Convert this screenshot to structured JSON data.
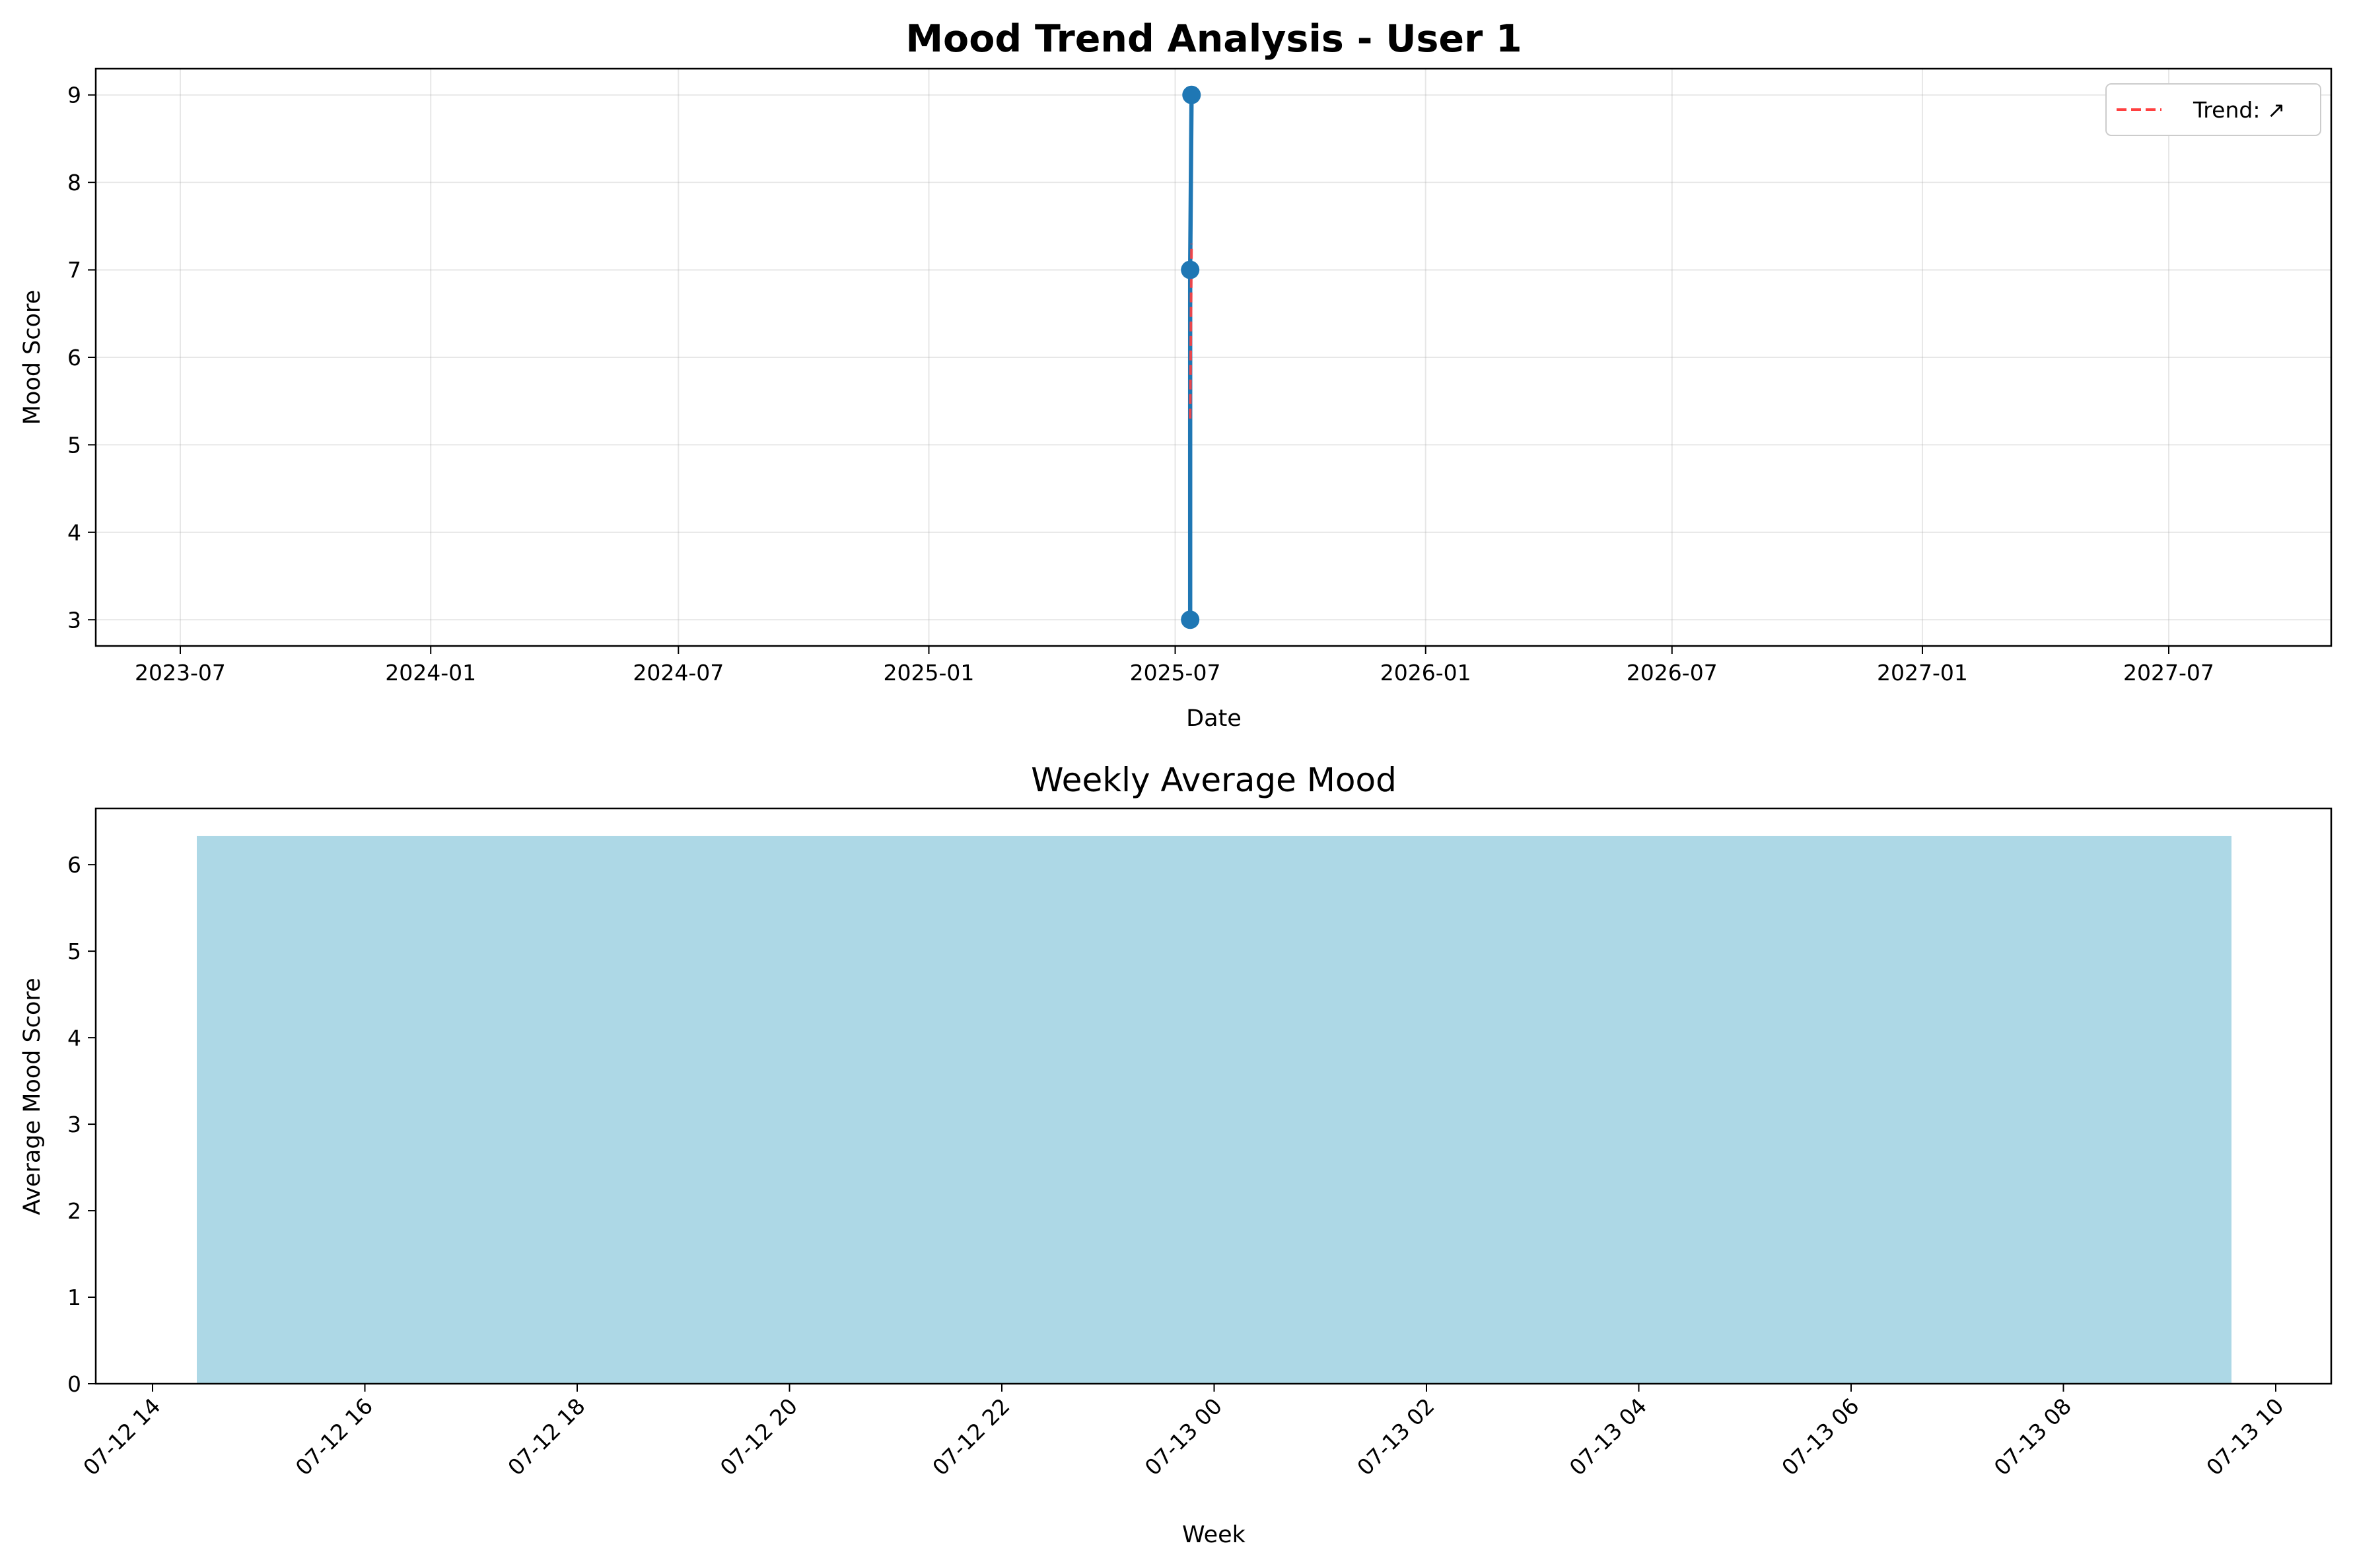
{
  "chart_data": [
    {
      "type": "line",
      "title": "Mood Trend Analysis - User 1",
      "xlabel": "Date",
      "ylabel": "Mood Score",
      "x_ticks": [
        "2023-07",
        "2024-01",
        "2024-07",
        "2025-01",
        "2025-07",
        "2026-01",
        "2026-07",
        "2027-01",
        "2027-07"
      ],
      "y_ticks": [
        "3",
        "4",
        "5",
        "6",
        "7",
        "8",
        "9"
      ],
      "ylim": [
        2.7,
        9.3
      ],
      "grid": true,
      "legend_placement": "top-right",
      "series": [
        {
          "values": [
            {
              "x": "2025-07-12",
              "y": 3
            },
            {
              "x": "2025-07-12",
              "y": 7
            },
            {
              "x": "2025-07-13",
              "y": 9
            }
          ],
          "color": "#1f77b4"
        },
        {
          "name": "Trend: ↗",
          "style": "dashed",
          "color": "#ff4040",
          "values": [
            {
              "x": "2025-07-12",
              "y": 5.3
            },
            {
              "x": "2025-07-13",
              "y": 7.3
            }
          ]
        }
      ]
    },
    {
      "type": "bar",
      "title": "Weekly Average Mood",
      "xlabel": "Week",
      "ylabel": "Average Mood Score",
      "x_ticks": [
        "07-12 14",
        "07-12 16",
        "07-12 18",
        "07-12 20",
        "07-12 22",
        "07-13 00",
        "07-13 02",
        "07-13 04",
        "07-13 06",
        "07-13 08",
        "07-13 10"
      ],
      "y_ticks": [
        "0",
        "1",
        "2",
        "3",
        "4",
        "5",
        "6"
      ],
      "ylim": [
        0,
        6.65
      ],
      "grid": false,
      "bar_color": "#add8e6",
      "series": [
        {
          "values": [
            {
              "x": "2025-07-13",
              "y": 6.33
            }
          ]
        }
      ]
    }
  ]
}
